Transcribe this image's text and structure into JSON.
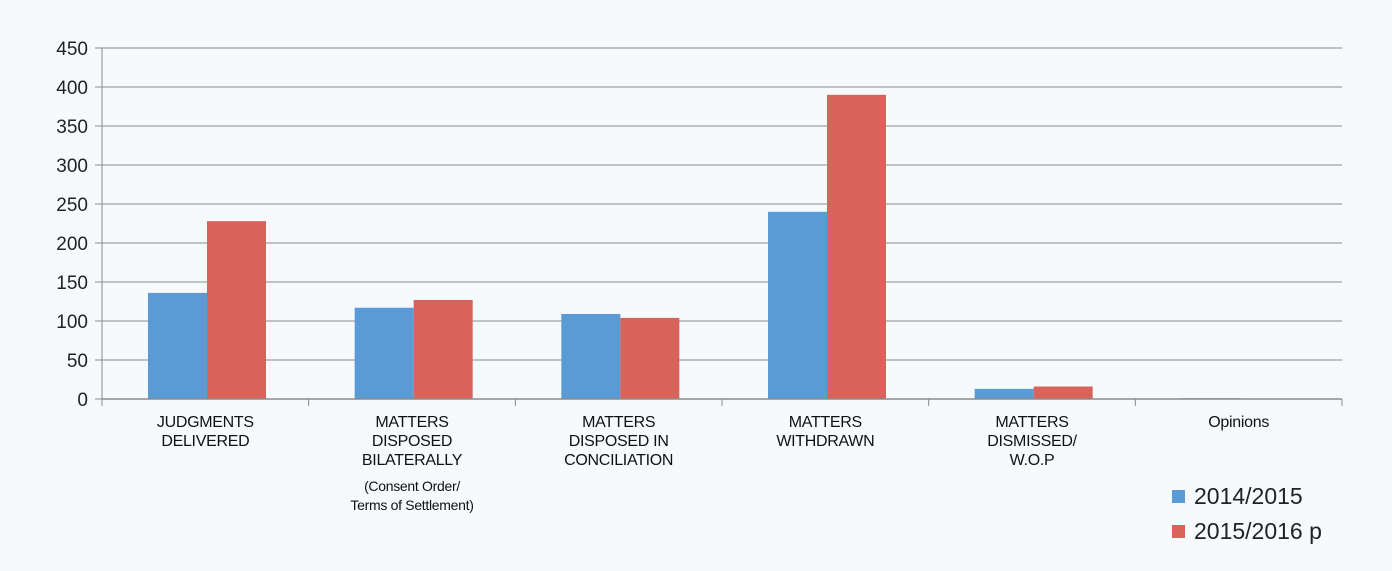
{
  "chart_data": {
    "type": "bar",
    "categories": [
      [
        "JUDGMENTS",
        "DELIVERED"
      ],
      [
        "MATTERS",
        "DISPOSED",
        "BILATERALLY",
        "(Consent Order/",
        "Terms of Settlement)"
      ],
      [
        "MATTERS",
        "DISPOSED IN",
        "CONCILIATION"
      ],
      [
        "MATTERS",
        "WITHDRAWN"
      ],
      [
        "MATTERS",
        "DISMISSED/",
        "W.O.P"
      ],
      [
        "Opinions"
      ]
    ],
    "series": [
      {
        "name": "2014/2015",
        "color": "#5b9bd5",
        "values": [
          136,
          117,
          109,
          240,
          13,
          1
        ]
      },
      {
        "name": "2015/2016 p",
        "color": "#d9625b",
        "values": [
          228,
          127,
          104,
          390,
          16,
          0
        ]
      }
    ],
    "y_ticks": [
      "0",
      "50",
      "100",
      "150",
      "200",
      "250",
      "300",
      "350",
      "400",
      "450"
    ],
    "ylim": [
      0,
      450
    ],
    "grid": true,
    "legend_position": "bottom-right",
    "title": "",
    "xlabel": "",
    "ylabel": ""
  }
}
